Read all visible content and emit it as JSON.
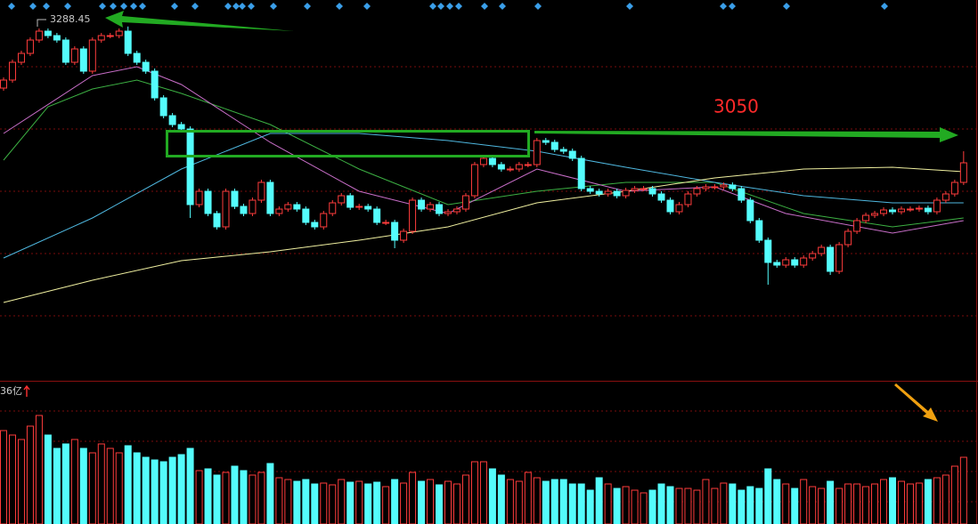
{
  "chart_data": {
    "type": "candlestick",
    "open": [
      3150,
      3168,
      3208,
      3228,
      3258,
      3278,
      3268,
      3258,
      3208,
      3238,
      3188,
      3258,
      3268,
      3268,
      3278,
      3228,
      3208,
      3188,
      3128,
      3088,
      3068,
      3058,
      2888,
      2918,
      2868,
      2838,
      2918,
      2884,
      2868,
      2898,
      2938,
      2868,
      2878,
      2888,
      2878,
      2848,
      2838,
      2868,
      2892,
      2908,
      2882,
      2884,
      2878,
      2848,
      2848,
      2808,
      2828,
      2898,
      2878,
      2888,
      2868,
      2872,
      2878,
      2908,
      2978,
      2992,
      2978,
      2968,
      2968,
      2978,
      2978,
      3032,
      3028,
      3012,
      3008,
      2992,
      2924,
      2918,
      2912,
      2918,
      2908,
      2920,
      2924,
      2924,
      2912,
      2898,
      2872,
      2888,
      2912,
      2924,
      2928,
      2928,
      2932,
      2924,
      2898,
      2852,
      2808,
      2758,
      2752,
      2764,
      2752,
      2768,
      2778,
      2792,
      2738,
      2798,
      2828,
      2852,
      2864,
      2868,
      2876,
      2872,
      2878,
      2878,
      2880,
      2872,
      2898,
      2912,
      2938
    ],
    "high": [
      3174,
      3214,
      3234,
      3264,
      3284,
      3284,
      3274,
      3264,
      3244,
      3244,
      3264,
      3274,
      3274,
      3284,
      3288.45,
      3234,
      3214,
      3194,
      3134,
      3094,
      3074,
      3064,
      2924,
      2924,
      2874,
      2924,
      2924,
      2890,
      2904,
      2944,
      2944,
      2884,
      2894,
      2894,
      2884,
      2854,
      2874,
      2898,
      2914,
      2914,
      2890,
      2890,
      2884,
      2854,
      2854,
      2834,
      2904,
      2904,
      2894,
      2894,
      2878,
      2884,
      2914,
      2984,
      2998,
      2998,
      2984,
      2974,
      2984,
      2984,
      3038,
      3038,
      3034,
      3018,
      3014,
      2998,
      2930,
      2924,
      2924,
      2924,
      2926,
      2930,
      2930,
      2930,
      2918,
      2904,
      2894,
      2918,
      2930,
      2934,
      2934,
      2938,
      2938,
      2930,
      2904,
      2858,
      2814,
      2764,
      2770,
      2770,
      2774,
      2784,
      2798,
      2798,
      2804,
      2834,
      2858,
      2870,
      2874,
      2882,
      2882,
      2884,
      2884,
      2886,
      2886,
      2904,
      2918,
      2944,
      3008
    ],
    "low": [
      3144,
      3162,
      3202,
      3222,
      3252,
      3262,
      3252,
      3202,
      3202,
      3182,
      3182,
      3252,
      3262,
      3262,
      3222,
      3202,
      3182,
      3122,
      3082,
      3062,
      3052,
      2858,
      2882,
      2862,
      2832,
      2832,
      2878,
      2862,
      2862,
      2892,
      2862,
      2862,
      2872,
      2872,
      2842,
      2832,
      2832,
      2862,
      2886,
      2876,
      2876,
      2872,
      2842,
      2842,
      2790,
      2802,
      2822,
      2872,
      2872,
      2862,
      2862,
      2866,
      2872,
      2902,
      2972,
      2972,
      2962,
      2962,
      2962,
      2972,
      2972,
      3022,
      3006,
      3002,
      2986,
      2918,
      2912,
      2906,
      2906,
      2902,
      2902,
      2914,
      2918,
      2906,
      2892,
      2866,
      2866,
      2882,
      2906,
      2918,
      2922,
      2922,
      2918,
      2892,
      2846,
      2802,
      2708,
      2746,
      2746,
      2746,
      2746,
      2762,
      2772,
      2730,
      2732,
      2792,
      2822,
      2846,
      2858,
      2862,
      2866,
      2866,
      2872,
      2872,
      2866,
      2866,
      2892,
      2906,
      2932
    ],
    "close": [
      3168,
      3208,
      3228,
      3258,
      3278,
      3268,
      3258,
      3208,
      3238,
      3188,
      3258,
      3268,
      3268,
      3278,
      3228,
      3208,
      3188,
      3128,
      3088,
      3068,
      3058,
      2888,
      2918,
      2868,
      2838,
      2918,
      2884,
      2868,
      2898,
      2938,
      2868,
      2878,
      2888,
      2878,
      2848,
      2838,
      2868,
      2892,
      2908,
      2882,
      2884,
      2878,
      2848,
      2848,
      2808,
      2828,
      2898,
      2878,
      2888,
      2868,
      2872,
      2878,
      2908,
      2978,
      2992,
      2978,
      2968,
      2968,
      2978,
      2978,
      3032,
      3028,
      3012,
      3008,
      2992,
      2924,
      2918,
      2912,
      2918,
      2908,
      2920,
      2924,
      2924,
      2912,
      2898,
      2872,
      2888,
      2912,
      2924,
      2928,
      2928,
      2932,
      2924,
      2898,
      2852,
      2808,
      2758,
      2752,
      2764,
      2752,
      2768,
      2778,
      2792,
      2738,
      2798,
      2828,
      2852,
      2864,
      2868,
      2876,
      2872,
      2878,
      2878,
      2880,
      2872,
      2898,
      2912,
      2938,
      2982
    ],
    "ylim": [
      2492,
      3348
    ],
    "up_color": "#ff3c3c",
    "down_color": "#54fcfc",
    "volume": [
      105,
      100,
      95,
      110,
      122,
      100,
      85,
      90,
      95,
      85,
      80,
      90,
      85,
      80,
      88,
      80,
      75,
      72,
      70,
      75,
      78,
      85,
      60,
      62,
      55,
      58,
      65,
      60,
      55,
      58,
      68,
      52,
      50,
      48,
      50,
      45,
      46,
      44,
      50,
      47,
      48,
      45,
      47,
      42,
      50,
      46,
      58,
      48,
      50,
      44,
      48,
      45,
      55,
      70,
      70,
      62,
      55,
      50,
      48,
      58,
      52,
      48,
      50,
      50,
      45,
      45,
      38,
      52,
      45,
      40,
      42,
      38,
      35,
      38,
      45,
      42,
      40,
      40,
      38,
      50,
      40,
      46,
      45,
      38,
      42,
      40,
      62,
      50,
      45,
      40,
      50,
      42,
      40,
      48,
      40,
      45,
      45,
      42,
      45,
      50,
      52,
      48,
      45,
      46,
      50,
      52,
      55,
      65,
      75
    ],
    "volume_ylim": [
      0,
      160
    ],
    "volume_label": "36亿",
    "annotation": "3050",
    "moving_averages": [
      {
        "color": "#3cb043",
        "x": [
          0,
          5,
          10,
          15,
          20,
          30,
          40,
          50,
          60,
          70,
          80,
          90,
          100,
          108
        ],
        "values": [
          2988,
          3108,
          3148,
          3168,
          3138,
          3068,
          2968,
          2888,
          2918,
          2938,
          2938,
          2868,
          2838,
          2858
        ]
      },
      {
        "color": "#c86ec8",
        "x": [
          0,
          10,
          15,
          20,
          30,
          40,
          50,
          60,
          70,
          80,
          88,
          100,
          108
        ],
        "values": [
          3048,
          3178,
          3198,
          3158,
          3028,
          2918,
          2868,
          2968,
          2918,
          2928,
          2868,
          2824,
          2852
        ]
      },
      {
        "color": "#4fb8e0",
        "x": [
          0,
          10,
          20,
          30,
          40,
          50,
          60,
          70,
          80,
          90,
          100,
          108
        ],
        "values": [
          2768,
          2858,
          2968,
          3048,
          3048,
          3032,
          3008,
          2972,
          2938,
          2908,
          2892,
          2892
        ]
      },
      {
        "color": "#f0f0a0",
        "x": [
          0,
          10,
          20,
          30,
          40,
          50,
          60,
          70,
          80,
          90,
          100,
          108
        ],
        "values": [
          2668,
          2718,
          2762,
          2782,
          2808,
          2838,
          2892,
          2918,
          2948,
          2968,
          2972,
          2962
        ]
      }
    ]
  }
}
